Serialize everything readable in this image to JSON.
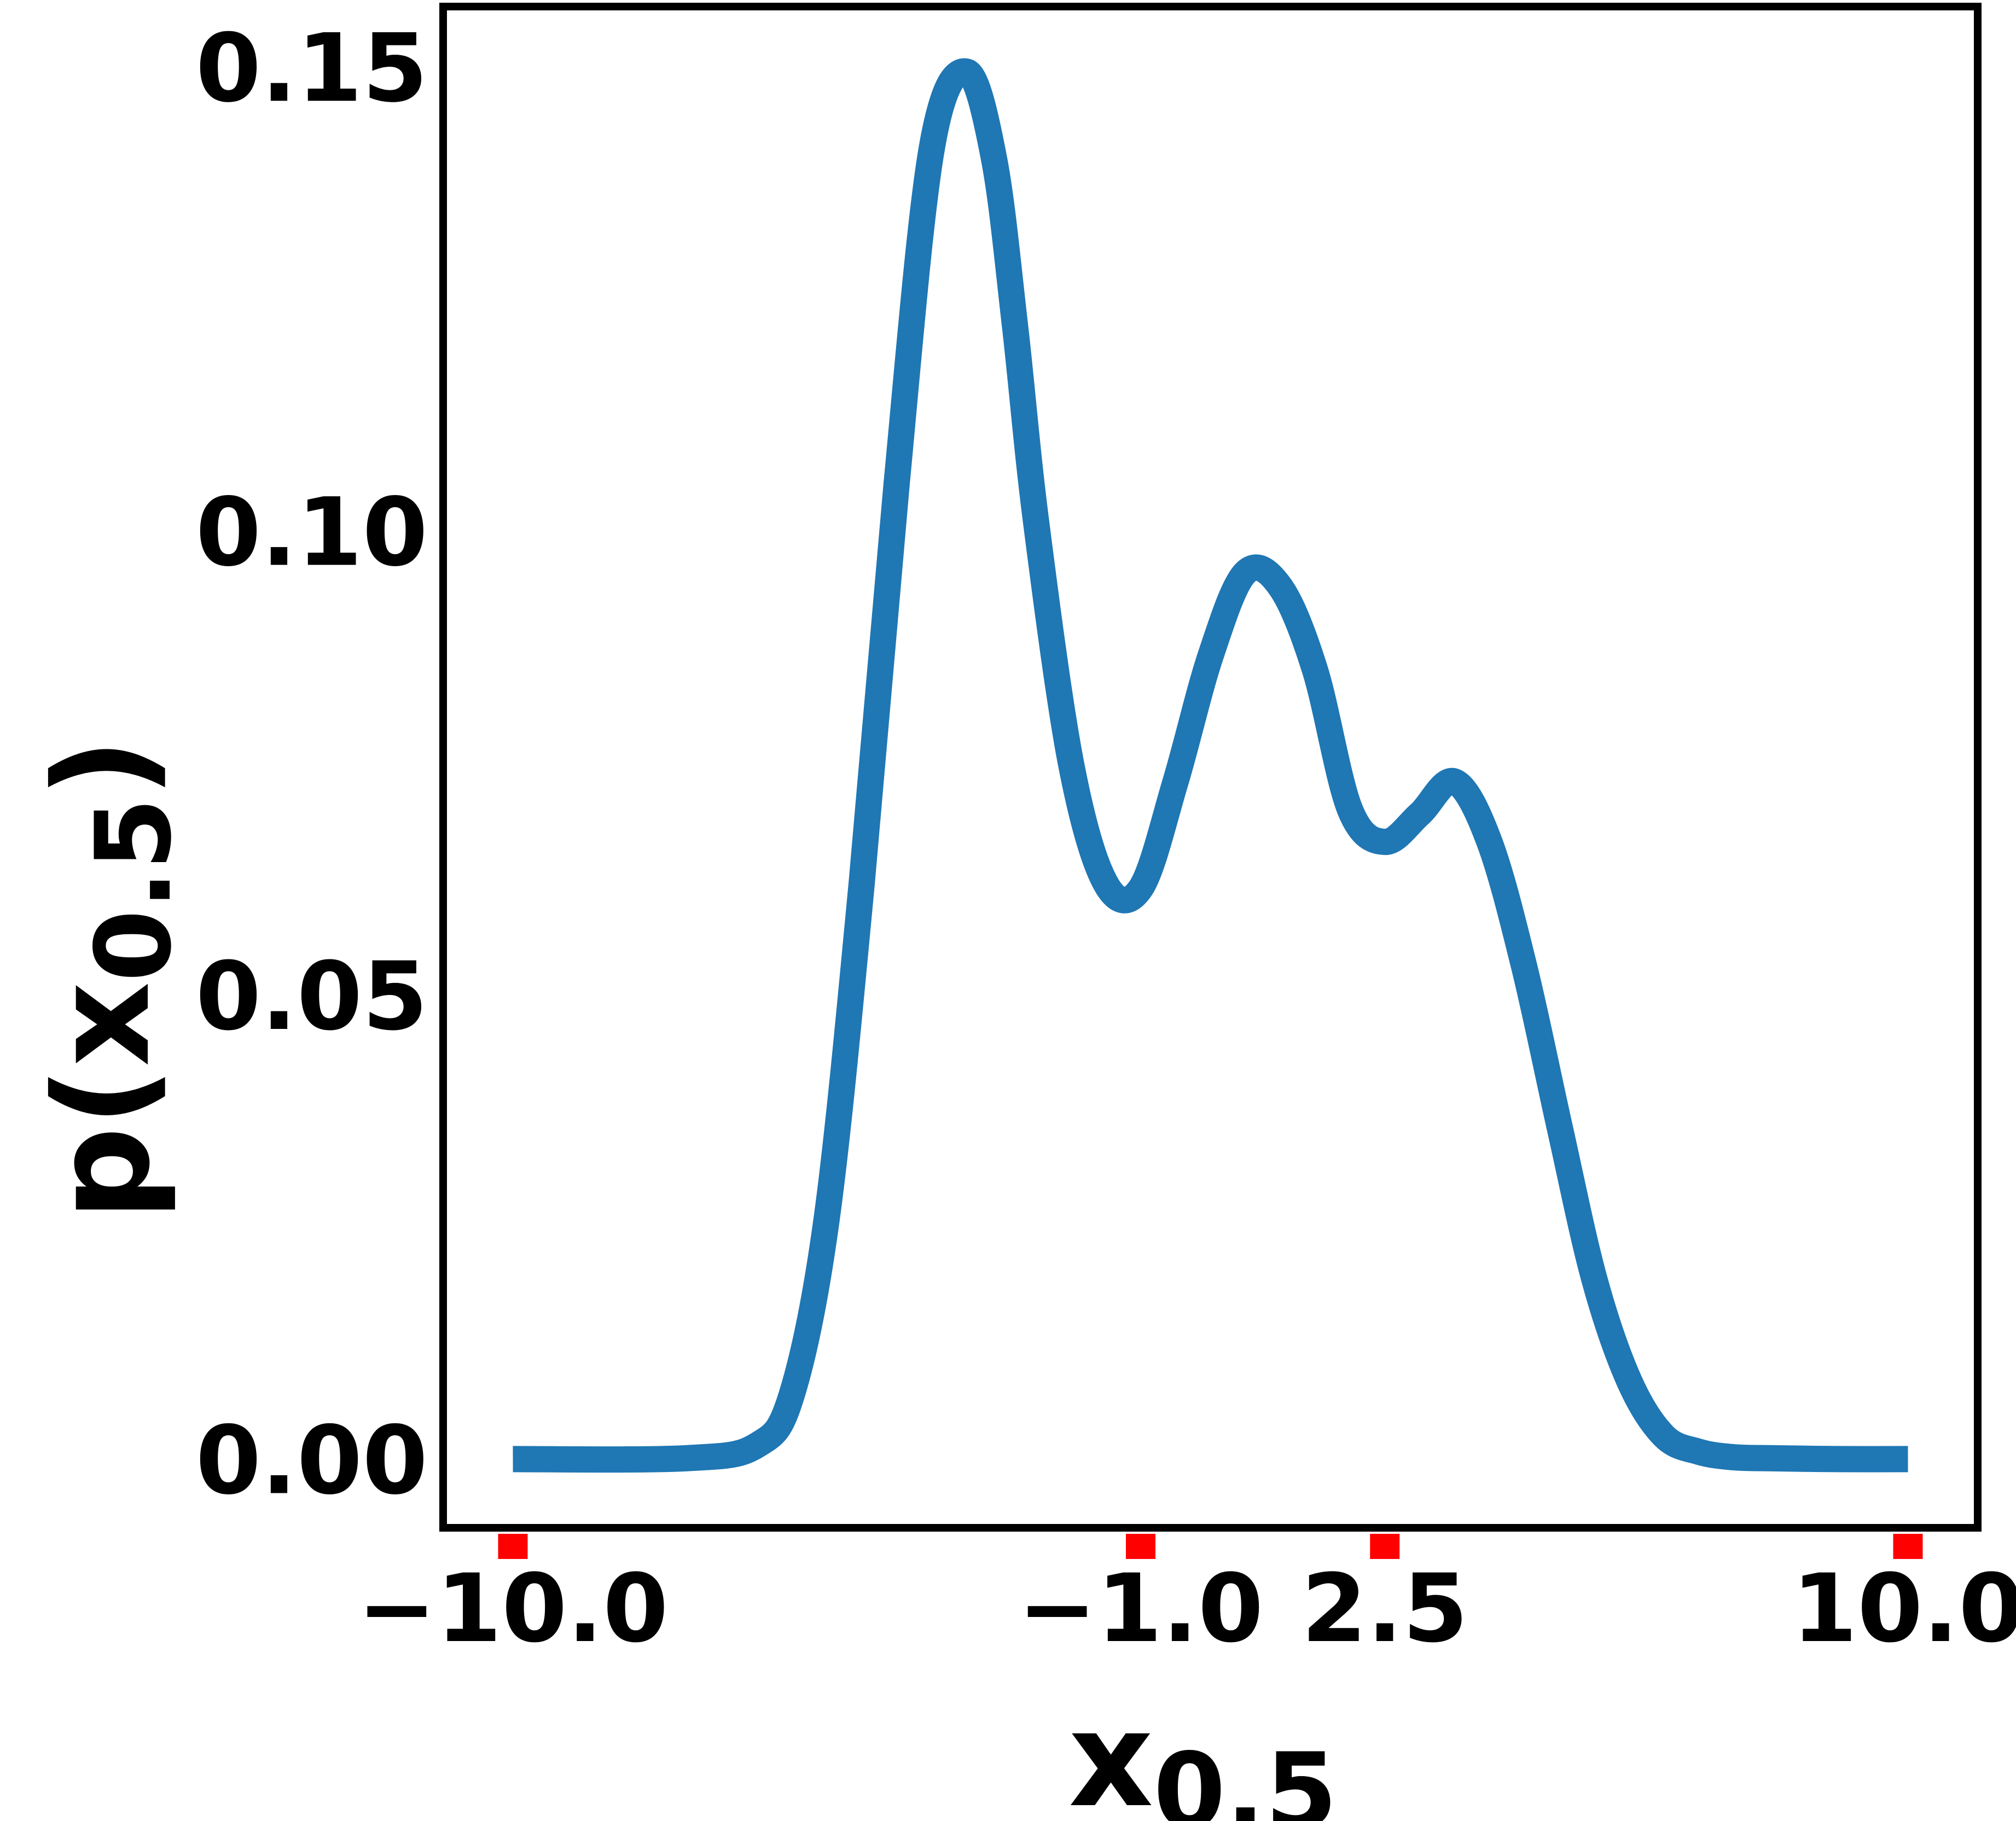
{
  "chart_data": {
    "type": "line",
    "title": "",
    "xlabel": {
      "main": "x",
      "sub": "0.5"
    },
    "ylabel": {
      "main": "p",
      "open": "(",
      "base": "x",
      "sub": "0.5",
      "close": ")"
    },
    "xlim": [
      -11.0,
      11.0
    ],
    "ylim": [
      -0.0074,
      0.1565
    ],
    "grid": false,
    "legend": "none",
    "x_ticks": [
      {
        "value": -10.0,
        "label": "−10.0"
      },
      {
        "value": -1.0,
        "label": "−1.0"
      },
      {
        "value": 2.5,
        "label": "2.5"
      },
      {
        "value": 10.0,
        "label": "10.0"
      }
    ],
    "y_ticks": [
      {
        "value": 0.0,
        "label": "0.00"
      },
      {
        "value": 0.05,
        "label": "0.05"
      },
      {
        "value": 0.1,
        "label": "0.10"
      },
      {
        "value": 0.15,
        "label": "0.15"
      }
    ],
    "series": [
      {
        "color": "#1f77b4",
        "x": [
          -10.0,
          -7.5,
          -6.5,
          -6.0,
          -5.5,
          -5.0,
          -4.5,
          -4.0,
          -3.5,
          -3.1,
          -2.8,
          -2.5,
          -2.0,
          -1.5,
          -1.0,
          -0.5,
          0.0,
          0.5,
          1.0,
          1.5,
          2.0,
          2.5,
          3.0,
          3.5,
          4.0,
          4.5,
          5.0,
          5.5,
          6.0,
          6.5,
          7.0,
          7.5,
          8.0,
          9.0,
          10.0
        ],
        "y": [
          0.0,
          0.0001,
          0.0015,
          0.007,
          0.026,
          0.062,
          0.105,
          0.141,
          0.1495,
          0.14,
          0.122,
          0.101,
          0.075,
          0.062,
          0.0615,
          0.073,
          0.0865,
          0.0955,
          0.094,
          0.085,
          0.07,
          0.0665,
          0.0695,
          0.073,
          0.0665,
          0.053,
          0.036,
          0.0195,
          0.0085,
          0.0025,
          0.0008,
          0.0002,
          0.0001,
          0.0,
          0.0
        ]
      }
    ]
  },
  "colors": {
    "tick_marks": "#ff0000",
    "frame": "#000000",
    "line": "#1f77b4"
  }
}
